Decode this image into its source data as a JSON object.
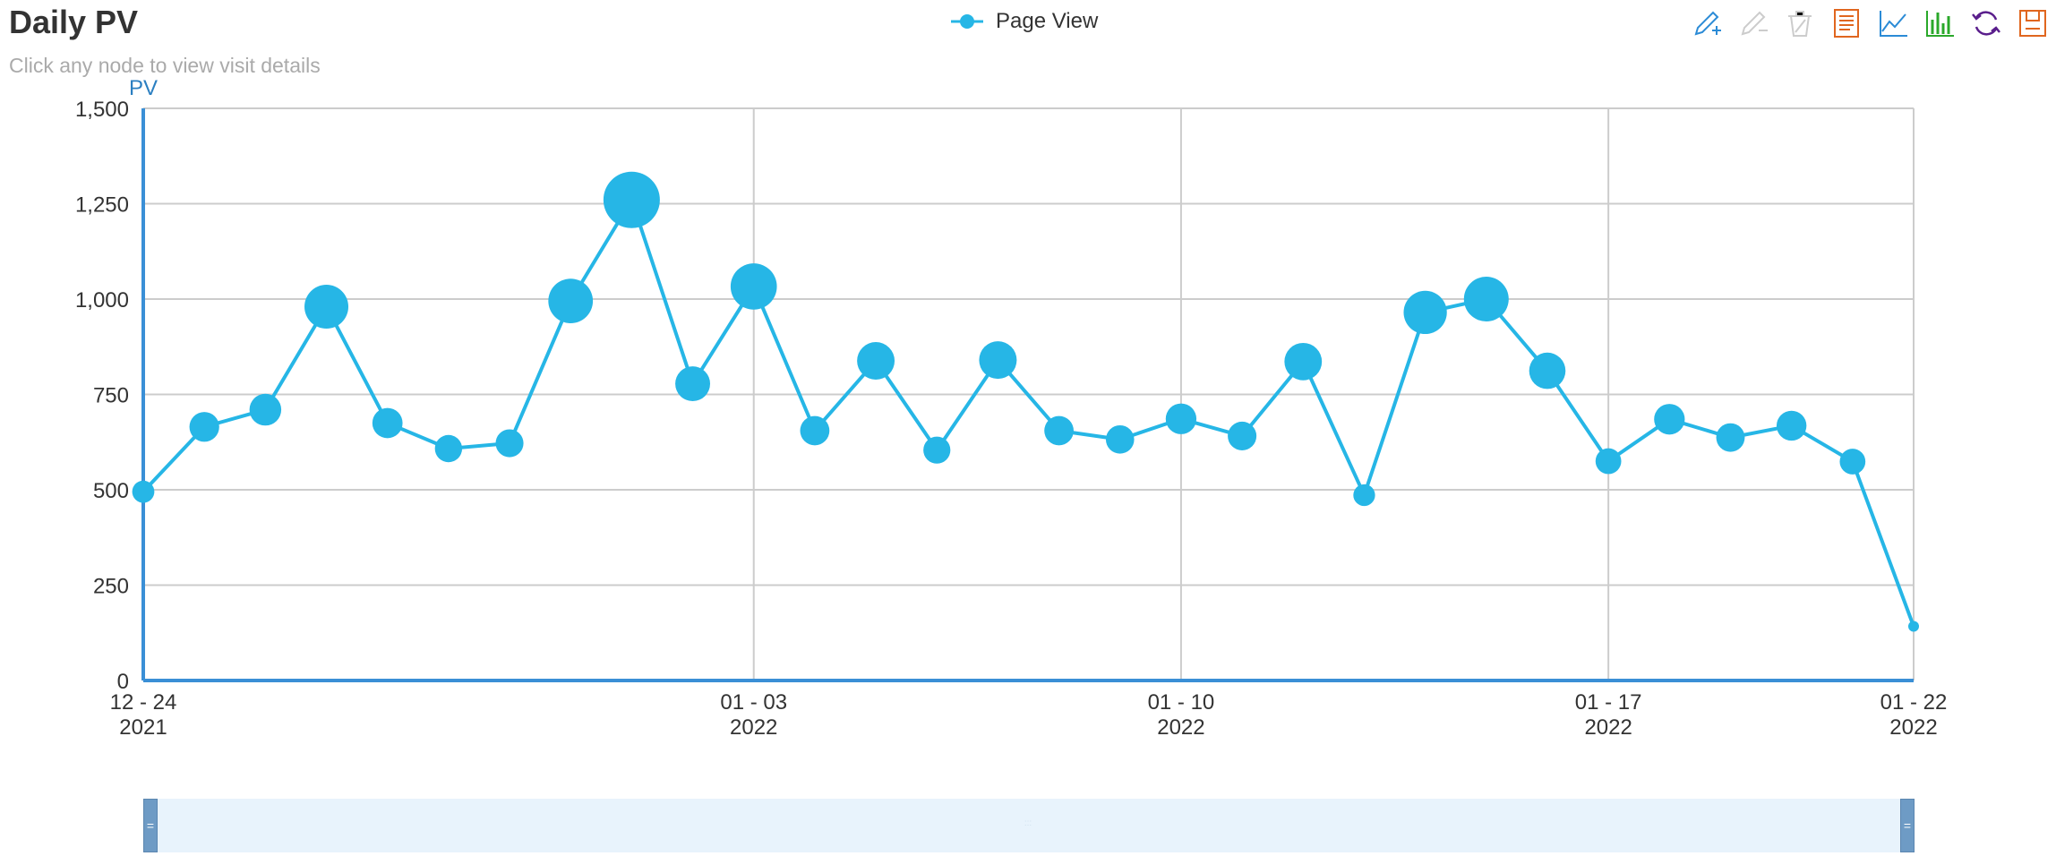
{
  "header": {
    "title": "Daily PV",
    "subtitle": "Click any node to view visit details"
  },
  "legend": {
    "label": "Page View",
    "color": "#26b6e6"
  },
  "toolbox": [
    {
      "name": "mark-icon",
      "color": "#2b8bd6"
    },
    {
      "name": "mark-undo-icon",
      "color": "#cccccc"
    },
    {
      "name": "mark-clear-icon",
      "color": "#cccccc"
    },
    {
      "name": "data-view-icon",
      "color": "#e0661f"
    },
    {
      "name": "line-chart-icon",
      "color": "#2b8bd6"
    },
    {
      "name": "bar-chart-icon",
      "color": "#2aa82a"
    },
    {
      "name": "restore-icon",
      "color": "#5a1e8c"
    },
    {
      "name": "save-image-icon",
      "color": "#e0661f"
    }
  ],
  "chart_data": {
    "type": "scatter",
    "ylabel": "PV",
    "ylim": [
      0,
      1500
    ],
    "yticks": [
      0,
      250,
      500,
      750,
      1000,
      1250,
      1500
    ],
    "y_tick_labels": [
      "0",
      "250",
      "500",
      "750",
      "1,000",
      "1,250",
      "1,500"
    ],
    "x_axis_type": "date",
    "x_range": [
      "2021-12-24",
      "2022-01-22"
    ],
    "x_ticks": [
      {
        "date": "2021-12-24",
        "label": "12 - 24",
        "year": "2021"
      },
      {
        "date": "2022-01-03",
        "label": "01 - 03",
        "year": "2022"
      },
      {
        "date": "2022-01-10",
        "label": "01 - 10",
        "year": "2022"
      },
      {
        "date": "2022-01-17",
        "label": "01 - 17",
        "year": "2022"
      },
      {
        "date": "2022-01-22",
        "label": "01 - 22",
        "year": "2022"
      }
    ],
    "grid": true,
    "line_and_bubbles": "line connecting points, marker size grows with value",
    "series": [
      {
        "name": "Page View",
        "color": "#26b6e6",
        "points": [
          {
            "x": "2021-12-24",
            "y": 495
          },
          {
            "x": "2021-12-25",
            "y": 665
          },
          {
            "x": "2021-12-26",
            "y": 710
          },
          {
            "x": "2021-12-27",
            "y": 980
          },
          {
            "x": "2021-12-28",
            "y": 675
          },
          {
            "x": "2021-12-29",
            "y": 608
          },
          {
            "x": "2021-12-30",
            "y": 622
          },
          {
            "x": "2021-12-31",
            "y": 995
          },
          {
            "x": "2022-01-01",
            "y": 1260
          },
          {
            "x": "2022-01-02",
            "y": 778
          },
          {
            "x": "2022-01-03",
            "y": 1033
          },
          {
            "x": "2022-01-04",
            "y": 655
          },
          {
            "x": "2022-01-05",
            "y": 838
          },
          {
            "x": "2022-01-06",
            "y": 604
          },
          {
            "x": "2022-01-07",
            "y": 840
          },
          {
            "x": "2022-01-08",
            "y": 655
          },
          {
            "x": "2022-01-09",
            "y": 632
          },
          {
            "x": "2022-01-10",
            "y": 686
          },
          {
            "x": "2022-01-11",
            "y": 641
          },
          {
            "x": "2022-01-12",
            "y": 836
          },
          {
            "x": "2022-01-13",
            "y": 486
          },
          {
            "x": "2022-01-14",
            "y": 965
          },
          {
            "x": "2022-01-15",
            "y": 1000
          },
          {
            "x": "2022-01-16",
            "y": 812
          },
          {
            "x": "2022-01-17",
            "y": 575
          },
          {
            "x": "2022-01-18",
            "y": 685
          },
          {
            "x": "2022-01-19",
            "y": 637
          },
          {
            "x": "2022-01-20",
            "y": 668
          },
          {
            "x": "2022-01-21",
            "y": 574
          },
          {
            "x": "2022-01-22",
            "y": 142
          }
        ]
      }
    ],
    "data_zoom": {
      "start": 0,
      "end": 100
    }
  }
}
